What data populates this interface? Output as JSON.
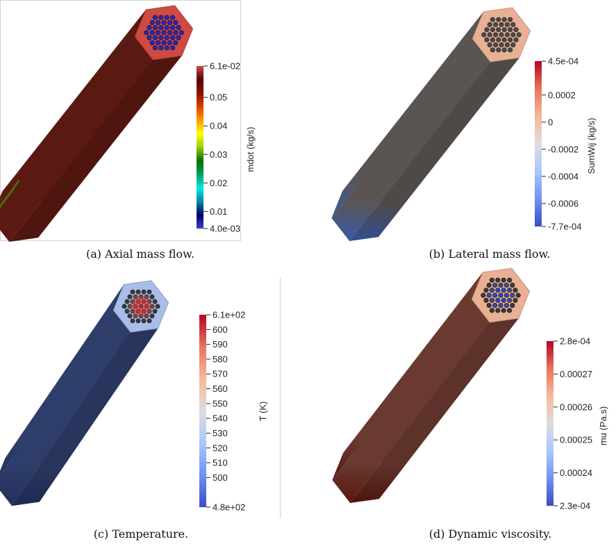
{
  "panels": [
    {
      "id": "a",
      "caption": "(a) Axial mass flow.",
      "colorbar": {
        "title": "mdot (kg/s)",
        "min": 0.004,
        "max": 0.061,
        "ticks": [
          {
            "v": 0.061,
            "label": "6.1e-02"
          },
          {
            "v": 0.05,
            "label": "0.05"
          },
          {
            "v": 0.04,
            "label": "0.04"
          },
          {
            "v": 0.03,
            "label": "0.03"
          },
          {
            "v": 0.02,
            "label": "0.02"
          },
          {
            "v": 0.01,
            "label": "0.01"
          },
          {
            "v": 0.004,
            "label": "4.0e-03"
          }
        ],
        "colormap": [
          "#4040c8",
          "#000066",
          "#0088aa",
          "#00e8e8",
          "#00a060",
          "#007000",
          "#9acc00",
          "#ffff00",
          "#ff9900",
          "#e04000",
          "#8a1000",
          "#5a0000",
          "#d04848"
        ]
      },
      "colors": {
        "body": "#5a1a12",
        "top": "#cf4a42",
        "pins": "#2a2aa8",
        "pin_edge": "#12125a"
      }
    },
    {
      "id": "b",
      "caption": "(b) Lateral mass flow.",
      "colorbar": {
        "title": "SumWij (kg/s)",
        "min": -0.00077,
        "max": 0.00045,
        "ticks": [
          {
            "v": 0.00045,
            "label": "4.5e-04"
          },
          {
            "v": 0.0002,
            "label": "0.0002"
          },
          {
            "v": 0,
            "label": "0"
          },
          {
            "v": -0.0002,
            "label": "-0.0002"
          },
          {
            "v": -0.0004,
            "label": "-0.0004"
          },
          {
            "v": -0.0006,
            "label": "-0.0006"
          },
          {
            "v": -0.00077,
            "label": "-7.7e-04"
          }
        ],
        "colormap": [
          "#3b4cc0",
          "#6f92f3",
          "#aac7fd",
          "#dddddd",
          "#f7b89c",
          "#e7745b",
          "#b40426"
        ]
      },
      "colors": {
        "body": "#5a5552",
        "top": "#e9b095",
        "pins": "#4a4a4a",
        "pin_edge": "#2a2a2a"
      }
    },
    {
      "id": "c",
      "caption": "(c) Temperature.",
      "colorbar": {
        "title": "T (K)",
        "min": 480,
        "max": 610,
        "ticks": [
          {
            "v": 610,
            "label": "6.1e+02"
          },
          {
            "v": 600,
            "label": "600"
          },
          {
            "v": 590,
            "label": "590"
          },
          {
            "v": 580,
            "label": "580"
          },
          {
            "v": 570,
            "label": "570"
          },
          {
            "v": 560,
            "label": "560"
          },
          {
            "v": 550,
            "label": "550"
          },
          {
            "v": 540,
            "label": "540"
          },
          {
            "v": 530,
            "label": "530"
          },
          {
            "v": 520,
            "label": "520"
          },
          {
            "v": 510,
            "label": "510"
          },
          {
            "v": 500,
            "label": "500"
          },
          {
            "v": 480,
            "label": "4.8e+02"
          }
        ],
        "colormap": [
          "#3b4cc0",
          "#6f92f3",
          "#aac7fd",
          "#dddddd",
          "#f7b89c",
          "#e7745b",
          "#b40426"
        ]
      },
      "colors": {
        "body": "#2f3d6a",
        "top": "#a9bde8",
        "pins": "#3a3a3a",
        "pin_edge": "#222222",
        "hot": "#c8201e"
      }
    },
    {
      "id": "d",
      "caption": "(d) Dynamic viscosity.",
      "colorbar": {
        "title": "mu (Pa.s)",
        "min": 0.00023,
        "max": 0.00028,
        "ticks": [
          {
            "v": 0.00028,
            "label": "2.8e-04"
          },
          {
            "v": 0.00027,
            "label": "0.00027"
          },
          {
            "v": 0.00026,
            "label": "0.00026"
          },
          {
            "v": 0.00025,
            "label": "0.00025"
          },
          {
            "v": 0.00024,
            "label": "0.00024"
          },
          {
            "v": 0.00023,
            "label": "2.3e-04"
          }
        ],
        "colormap": [
          "#3b4cc0",
          "#6f92f3",
          "#aac7fd",
          "#dddddd",
          "#f7b89c",
          "#e7745b",
          "#b40426"
        ]
      },
      "colors": {
        "body": "#6a3a30",
        "top": "#e9b095",
        "pins": "#3a3a3a",
        "pin_edge": "#222222",
        "cold": "#3050d0"
      }
    }
  ]
}
